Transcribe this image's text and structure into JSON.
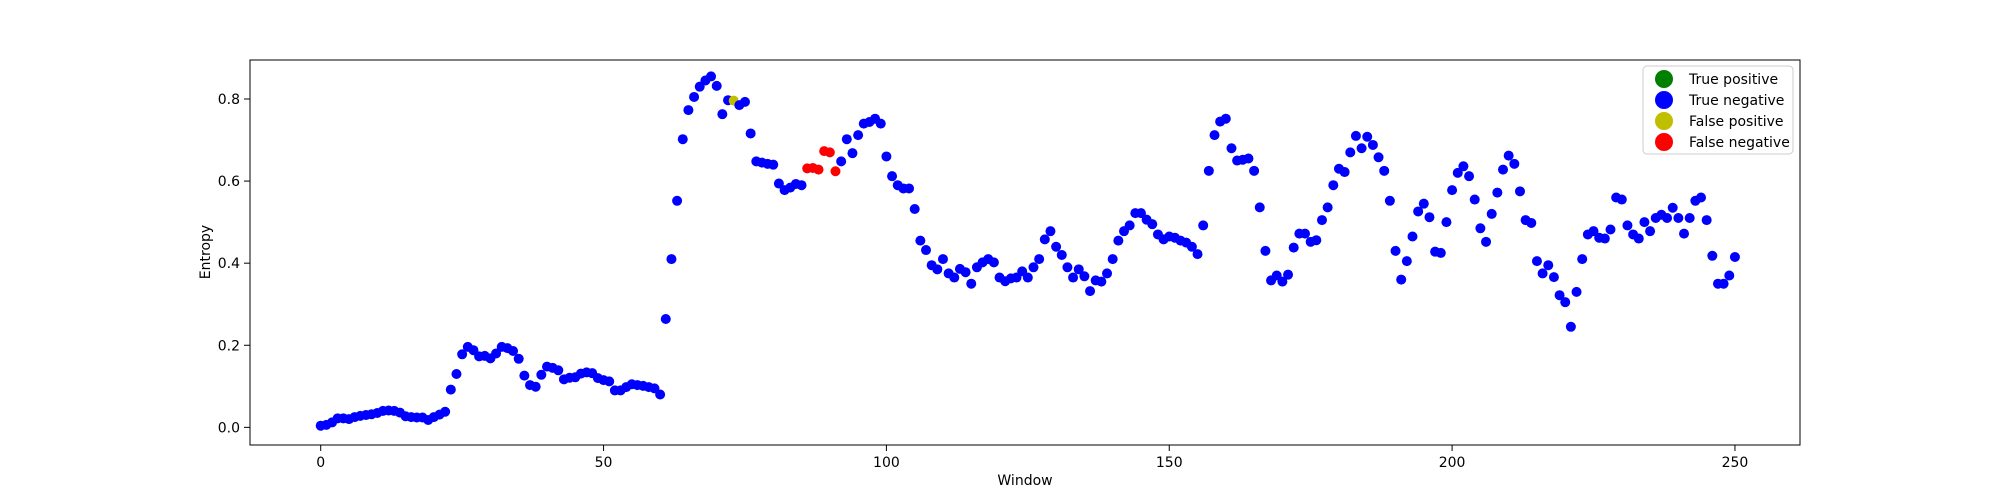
{
  "chart_data": {
    "type": "scatter",
    "title": "",
    "xlabel": "Window",
    "ylabel": "Entropy",
    "xlim": [
      -12.5,
      261.5
    ],
    "ylim": [
      -0.043,
      0.895
    ],
    "xticks": [
      0,
      50,
      100,
      150,
      200,
      250
    ],
    "yticks": [
      0.0,
      0.2,
      0.4,
      0.6,
      0.8
    ],
    "ytick_labels": [
      "0.0",
      "0.2",
      "0.4",
      "0.6",
      "0.8"
    ],
    "grid": false,
    "legend_position": "top-right",
    "legend": [
      {
        "name": "True positive",
        "color": "#008000"
      },
      {
        "name": "True negative",
        "color": "#0000ff"
      },
      {
        "name": "False positive",
        "color": "#bfbf00"
      },
      {
        "name": "False negative",
        "color": "#ff0000"
      }
    ],
    "y": [
      0.004,
      0.006,
      0.012,
      0.022,
      0.022,
      0.02,
      0.025,
      0.028,
      0.03,
      0.032,
      0.035,
      0.04,
      0.041,
      0.04,
      0.036,
      0.027,
      0.025,
      0.024,
      0.024,
      0.018,
      0.025,
      0.031,
      0.038,
      0.092,
      0.13,
      0.178,
      0.196,
      0.188,
      0.173,
      0.174,
      0.168,
      0.18,
      0.196,
      0.193,
      0.186,
      0.167,
      0.126,
      0.103,
      0.099,
      0.128,
      0.148,
      0.145,
      0.139,
      0.117,
      0.121,
      0.122,
      0.131,
      0.134,
      0.132,
      0.12,
      0.115,
      0.112,
      0.09,
      0.09,
      0.098,
      0.105,
      0.103,
      0.101,
      0.098,
      0.095,
      0.08,
      0.264,
      0.41,
      0.552,
      0.702,
      0.773,
      0.805,
      0.83,
      0.845,
      0.855,
      0.832,
      0.763,
      0.797,
      0.796,
      0.785,
      0.793,
      0.716,
      0.648,
      0.645,
      0.642,
      0.64,
      0.594,
      0.578,
      0.584,
      0.593,
      0.59,
      0.631,
      0.632,
      0.628,
      0.673,
      0.67,
      0.624,
      0.648,
      0.702,
      0.668,
      0.712,
      0.74,
      0.744,
      0.752,
      0.74,
      0.66,
      0.612,
      0.59,
      0.582,
      0.582,
      0.532,
      0.455,
      0.432,
      0.395,
      0.385,
      0.41,
      0.375,
      0.365,
      0.386,
      0.378,
      0.35,
      0.39,
      0.402,
      0.41,
      0.402,
      0.365,
      0.356,
      0.363,
      0.365,
      0.38,
      0.365,
      0.39,
      0.41,
      0.458,
      0.478,
      0.44,
      0.42,
      0.39,
      0.365,
      0.385,
      0.368,
      0.332,
      0.358,
      0.355,
      0.375,
      0.41,
      0.455,
      0.478,
      0.492,
      0.522,
      0.522,
      0.506,
      0.495,
      0.47,
      0.458,
      0.465,
      0.462,
      0.455,
      0.45,
      0.44,
      0.422,
      0.492,
      0.625,
      0.712,
      0.745,
      0.752,
      0.68,
      0.65,
      0.652,
      0.655,
      0.625,
      0.536,
      0.43,
      0.358,
      0.37,
      0.355,
      0.372,
      0.438,
      0.472,
      0.472,
      0.452,
      0.456,
      0.505,
      0.536,
      0.59,
      0.63,
      0.622,
      0.67,
      0.71,
      0.68,
      0.708,
      0.688,
      0.658,
      0.625,
      0.552,
      0.43,
      0.36,
      0.405,
      0.465,
      0.526,
      0.545,
      0.512,
      0.428,
      0.425,
      0.5,
      0.578,
      0.62,
      0.636,
      0.612,
      0.555,
      0.485,
      0.452,
      0.52,
      0.572,
      0.628,
      0.662,
      0.642,
      0.575,
      0.505,
      0.498,
      0.405,
      0.375,
      0.395,
      0.366,
      0.322,
      0.305,
      0.245,
      0.33,
      0.41,
      0.47,
      0.478,
      0.462,
      0.46,
      0.482,
      0.56,
      0.555,
      0.492,
      0.47,
      0.46,
      0.5,
      0.478,
      0.51,
      0.518,
      0.51,
      0.535,
      0.51,
      0.472,
      0.51,
      0.552,
      0.56,
      0.505,
      0.418,
      0.35,
      0.35,
      0.37,
      0.415
    ],
    "label_class": {
      "false_negative_x": [
        86,
        87,
        88,
        89,
        90,
        91
      ],
      "false_positive_x": [
        73
      ],
      "default": "True negative"
    }
  }
}
